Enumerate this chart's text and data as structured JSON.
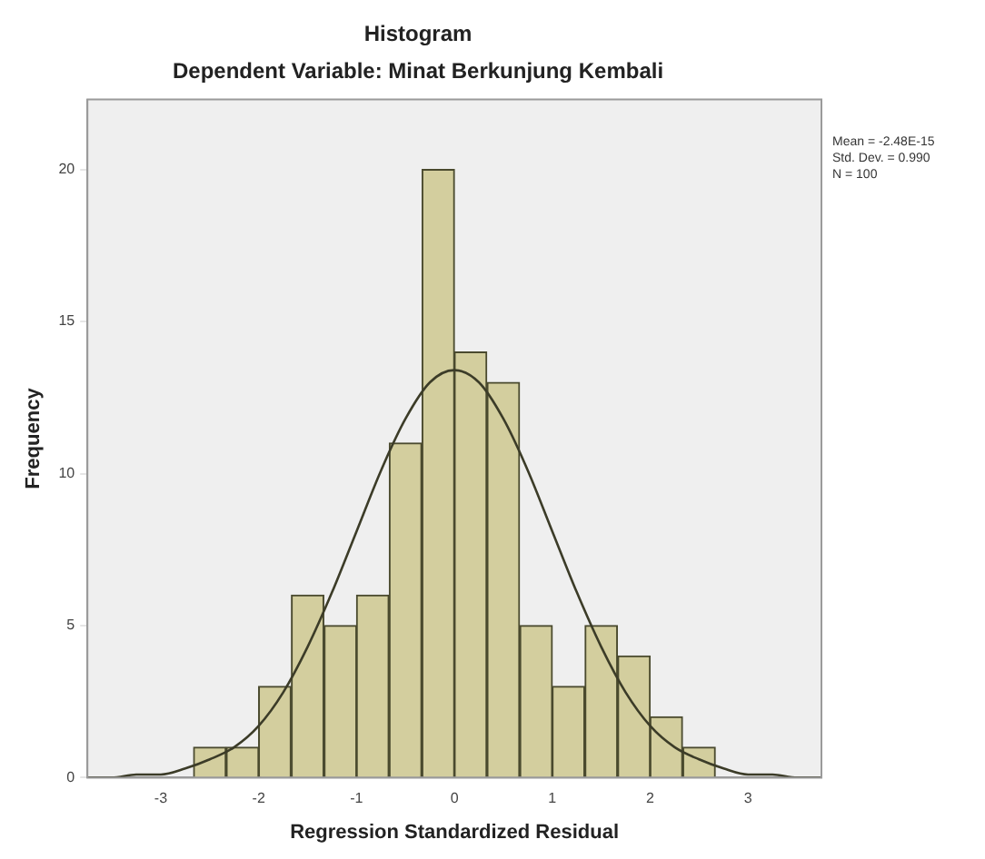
{
  "chart_data": {
    "type": "histogram",
    "title": "Histogram",
    "subtitle": "Dependent Variable: Minat Berkunjung Kembali",
    "xlabel": "Regression Standardized Residual",
    "ylabel": "Frequency",
    "annotations": [
      "Mean = -2.48E-15",
      "Std. Dev. = 0.990",
      "N = 100"
    ],
    "xlim": [
      -3.75,
      3.75
    ],
    "xticks": [
      -3,
      -2,
      -1,
      0,
      1,
      2,
      3
    ],
    "ylim": [
      0,
      22.3
    ],
    "yticks": [
      0,
      5,
      10,
      15,
      20
    ],
    "grid": false,
    "legend": false,
    "marker": "none",
    "series": [
      {
        "color": "#d3ce9e",
        "bins": [
          -2.67,
          -2.33,
          -2,
          -1.67,
          -1.33,
          -1,
          -0.67,
          -0.33,
          0,
          0.33,
          0.67,
          1,
          1.33,
          1.67,
          2,
          2.33,
          2.67
        ],
        "values": [
          1,
          1,
          3,
          6,
          5,
          6,
          11,
          20,
          14,
          13,
          5,
          3,
          5,
          4,
          2,
          1
        ]
      },
      {
        "type": "line",
        "color": "#3c3c28",
        "x": [
          -3.75,
          -3.5,
          -3.25,
          -3,
          -2.75,
          -2.5,
          -2.25,
          -2,
          -1.75,
          -1.5,
          -1.25,
          -1,
          -0.75,
          -0.5,
          -0.25,
          0,
          0.25,
          0.5,
          0.75,
          1,
          1.25,
          1.5,
          1.75,
          2,
          2.25,
          2.5,
          2.75,
          3,
          3.25,
          3.5,
          3.75
        ],
        "values": [
          0,
          0,
          0.1,
          0.1,
          0.3,
          0.6,
          1.0,
          1.7,
          2.8,
          4.3,
          6.1,
          8.1,
          10.1,
          11.8,
          13.0,
          13.4,
          13.0,
          11.8,
          10.1,
          8.1,
          6.1,
          4.3,
          2.8,
          1.7,
          1.0,
          0.6,
          0.3,
          0.1,
          0.1,
          0,
          0
        ]
      }
    ]
  }
}
